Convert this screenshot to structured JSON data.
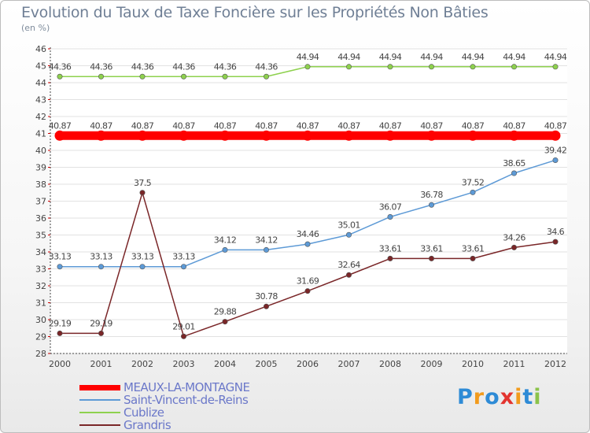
{
  "chart_data": {
    "type": "line",
    "title": "Evolution du Taux de Taxe Foncière sur les Propriétés Non Bâties",
    "ylabel": "(en %)",
    "xlabel": "",
    "ylim": [
      28,
      46
    ],
    "yticks": [
      "28",
      "29",
      "30",
      "31",
      "32",
      "33",
      "34",
      "35",
      "36",
      "37",
      "38",
      "39",
      "40",
      "41",
      "42",
      "43",
      "44",
      "45",
      "46"
    ],
    "categories": [
      "2000",
      "2001",
      "2002",
      "2003",
      "2004",
      "2005",
      "2006",
      "2007",
      "2008",
      "2009",
      "2010",
      "2011",
      "2012"
    ],
    "series": [
      {
        "name": "MEAUX-LA-MONTAGNE",
        "color": "#ff0000",
        "values": [
          40.87,
          40.87,
          40.87,
          40.87,
          40.87,
          40.87,
          40.87,
          40.87,
          40.87,
          40.87,
          40.87,
          40.87,
          40.87
        ],
        "labels": [
          "40.87",
          "40.87",
          "40.87",
          "40.87",
          "40.87",
          "40.87",
          "40.87",
          "40.87",
          "40.87",
          "40.87",
          "40.87",
          "40.87",
          "40.87"
        ]
      },
      {
        "name": "Saint-Vincent-de-Reins",
        "color": "#5d9ad6",
        "values": [
          33.13,
          33.13,
          33.13,
          33.13,
          34.12,
          34.12,
          34.46,
          35.01,
          36.07,
          36.78,
          37.52,
          38.65,
          39.42
        ],
        "labels": [
          "33.13",
          "33.13",
          "33.13",
          "33.13",
          "34.12",
          "34.12",
          "34.46",
          "35.01",
          "36.07",
          "36.78",
          "37.52",
          "38.65",
          "39.42"
        ]
      },
      {
        "name": "Cublize",
        "color": "#8ed14e",
        "values": [
          44.36,
          44.36,
          44.36,
          44.36,
          44.36,
          44.36,
          44.94,
          44.94,
          44.94,
          44.94,
          44.94,
          44.94,
          44.94
        ],
        "labels": [
          "44.36",
          "44.36",
          "44.36",
          "44.36",
          "44.36",
          "44.36",
          "44.94",
          "44.94",
          "44.94",
          "44.94",
          "44.94",
          "44.94",
          "44.94"
        ]
      },
      {
        "name": "Grandris",
        "color": "#7a2628",
        "values": [
          29.19,
          29.19,
          37.5,
          29.01,
          29.88,
          30.78,
          31.69,
          32.64,
          33.61,
          33.61,
          33.61,
          34.26,
          34.6
        ],
        "labels": [
          "29.19",
          "29.19",
          "37.5",
          "29.01",
          "29.88",
          "30.78",
          "31.69",
          "32.64",
          "33.61",
          "33.61",
          "33.61",
          "34.26",
          "34.6"
        ]
      }
    ],
    "legend_position": "bottom-left",
    "grid": true
  },
  "logo": {
    "letters": [
      "P",
      "r",
      "o",
      "x",
      "i",
      "t",
      "i"
    ],
    "colors": [
      "#2e8bd6",
      "#f29b1d",
      "#2e8bd6",
      "#e3342f",
      "#f29b1d",
      "#2e8bd6",
      "#8bc34a"
    ]
  }
}
